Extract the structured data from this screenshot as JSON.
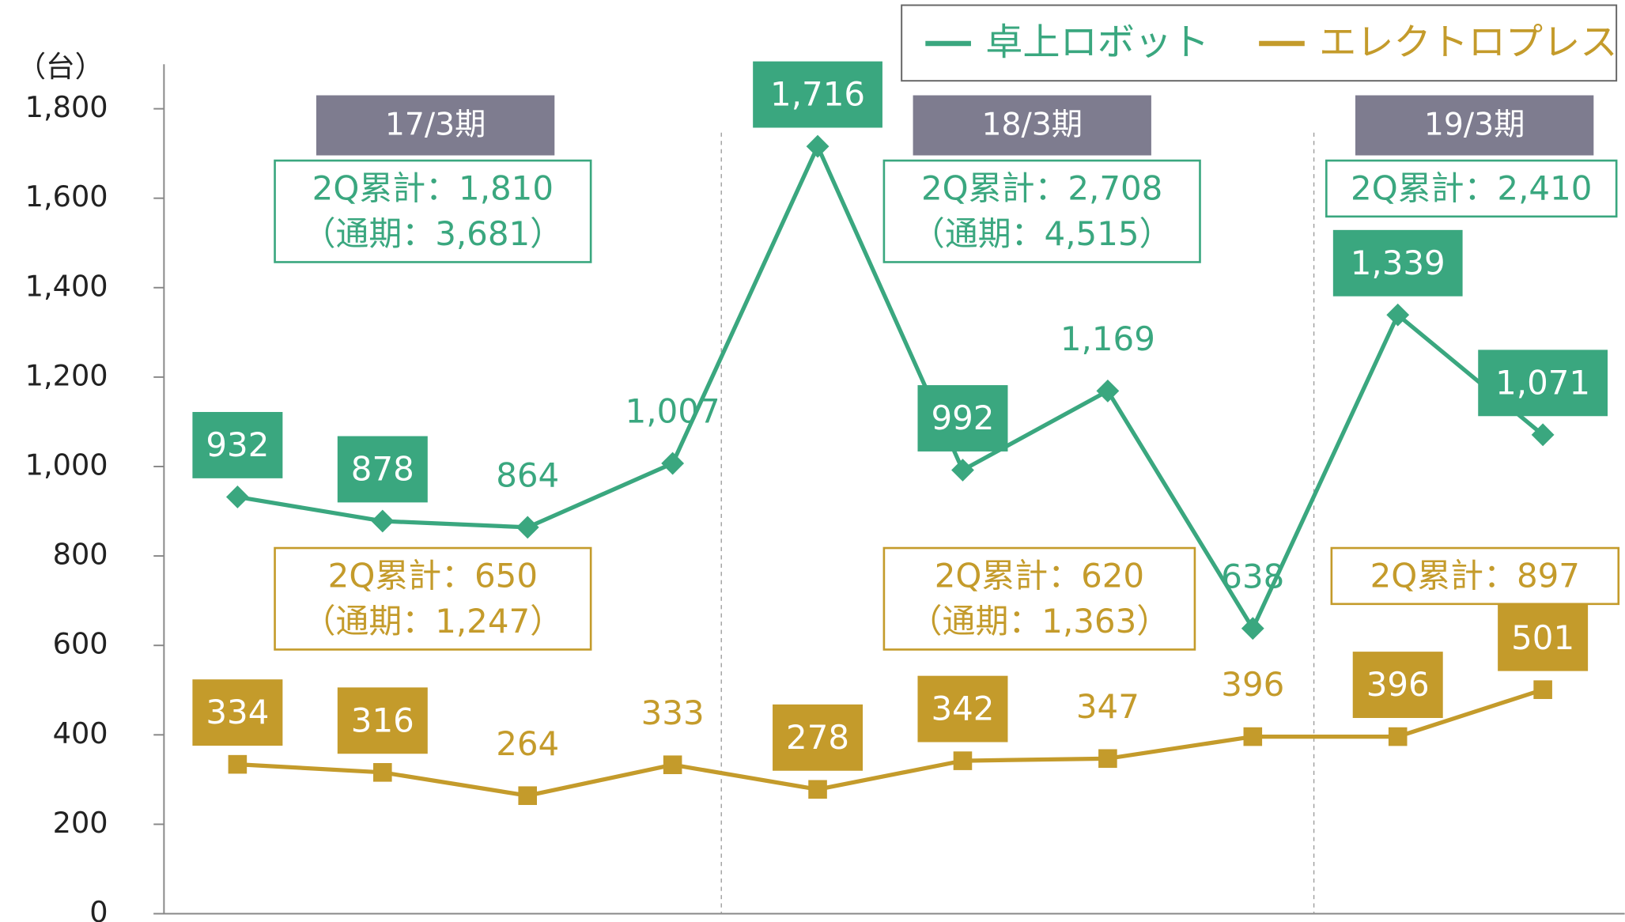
{
  "chart_data": {
    "type": "line",
    "y_label": "（台）",
    "ylim": [
      0,
      1800
    ],
    "yticks": [
      0,
      200,
      400,
      600,
      800,
      {
        "value": 1000,
        "label": "1,000"
      },
      {
        "value": 1200,
        "label": "1,200"
      },
      {
        "value": 1400,
        "label": "1,400"
      },
      {
        "value": 1600,
        "label": "1,600"
      },
      {
        "value": 1800,
        "label": "1,800"
      }
    ],
    "legend": "top-right",
    "series": [
      {
        "name": "卓上ロボット",
        "color": "#3aa77f",
        "marker": "diamond",
        "values": [
          932,
          878,
          864,
          1007,
          1716,
          992,
          1169,
          638,
          1339,
          1071
        ],
        "value_labels": [
          "932",
          "878",
          "864",
          "1,007",
          "1,716",
          "992",
          "1,169",
          "638",
          "1,339",
          "1,071"
        ],
        "boxed_labels": [
          true,
          true,
          false,
          false,
          true,
          true,
          false,
          false,
          true,
          true
        ]
      },
      {
        "name": "エレクトロプレス",
        "color": "#c49b2b",
        "marker": "square",
        "values": [
          334,
          316,
          264,
          333,
          278,
          342,
          347,
          396,
          396,
          501
        ],
        "value_labels": [
          "334",
          "316",
          "264",
          "333",
          "278",
          "342",
          "347",
          "396",
          "396",
          "501"
        ],
        "boxed_labels": [
          true,
          true,
          false,
          false,
          true,
          true,
          false,
          false,
          true,
          true
        ]
      }
    ],
    "periods": [
      {
        "label": "17/3期",
        "notes": [
          [
            "2Q累計：1,810",
            "（通期：3,681）"
          ],
          [
            "2Q累計：650",
            "（通期：1,247）"
          ]
        ]
      },
      {
        "label": "18/3期",
        "notes": [
          [
            "2Q累計：2,708",
            "（通期：4,515）"
          ],
          [
            "2Q累計：620",
            "（通期：1,363）"
          ]
        ]
      },
      {
        "label": "19/3期",
        "notes": [
          [
            "2Q累計：2,410"
          ],
          [
            "2Q累計：897"
          ]
        ]
      }
    ]
  }
}
